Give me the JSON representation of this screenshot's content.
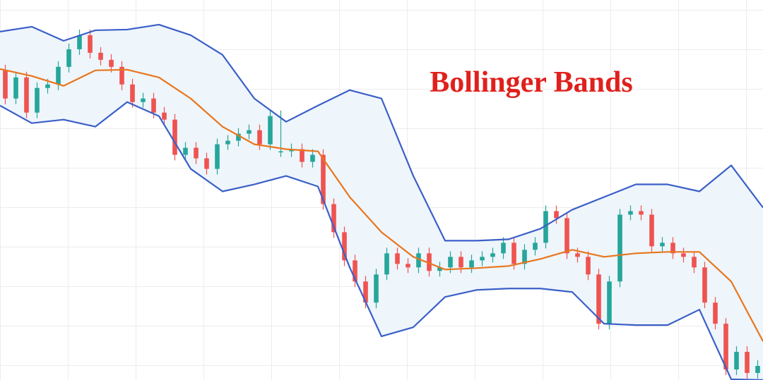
{
  "chart_data": {
    "type": "candlestick",
    "title": "Bollinger Bands",
    "xlim": [
      -0.5,
      71.5
    ],
    "ylim": [
      0,
      540
    ],
    "grid": true,
    "up_color": "#26a69a",
    "down_color": "#ef5350",
    "band_fill": "#eef5fb",
    "x": [
      0,
      1,
      2,
      3,
      4,
      5,
      6,
      7,
      8,
      9,
      10,
      11,
      12,
      13,
      14,
      15,
      16,
      17,
      18,
      19,
      20,
      21,
      22,
      23,
      24,
      25,
      26,
      27,
      28,
      29,
      30,
      31,
      32,
      33,
      34,
      35,
      36,
      37,
      38,
      39,
      40,
      41,
      42,
      43,
      44,
      45,
      46,
      47,
      48,
      49,
      50,
      51,
      52,
      53,
      54,
      55,
      56,
      57,
      58,
      59,
      60,
      61,
      62,
      63,
      64,
      65,
      66,
      67,
      68,
      69,
      70,
      71
    ],
    "open": [
      440,
      400,
      430,
      380,
      415,
      420,
      445,
      470,
      490,
      465,
      455,
      445,
      420,
      395,
      400,
      380,
      370,
      320,
      330,
      315,
      300,
      335,
      340,
      350,
      355,
      335,
      325,
      325,
      328,
      310,
      320,
      250,
      210,
      170,
      140,
      110,
      150,
      180,
      165,
      160,
      180,
      155,
      160,
      175,
      160,
      170,
      175,
      180,
      195,
      165,
      185,
      195,
      240,
      230,
      180,
      175,
      150,
      80,
      140,
      235,
      240,
      235,
      190,
      195,
      180,
      175,
      160,
      110,
      80,
      15,
      40,
      10
    ],
    "high": [
      448,
      438,
      438,
      423,
      428,
      453,
      478,
      498,
      498,
      473,
      463,
      453,
      428,
      408,
      408,
      388,
      378,
      338,
      338,
      323,
      343,
      348,
      358,
      363,
      363,
      383,
      383,
      336,
      336,
      328,
      328,
      258,
      218,
      178,
      148,
      158,
      188,
      188,
      173,
      188,
      188,
      168,
      183,
      183,
      178,
      183,
      188,
      203,
      203,
      193,
      203,
      248,
      248,
      238,
      188,
      183,
      158,
      148,
      243,
      248,
      248,
      243,
      203,
      203,
      188,
      183,
      168,
      118,
      88,
      48,
      48,
      28
    ],
    "low": [
      392,
      392,
      372,
      372,
      407,
      412,
      437,
      462,
      457,
      447,
      437,
      412,
      387,
      387,
      372,
      362,
      312,
      312,
      307,
      292,
      292,
      327,
      332,
      342,
      327,
      327,
      317,
      317,
      302,
      302,
      242,
      202,
      162,
      132,
      102,
      102,
      142,
      157,
      152,
      152,
      147,
      147,
      152,
      152,
      152,
      162,
      167,
      172,
      157,
      157,
      177,
      187,
      222,
      172,
      167,
      142,
      72,
      72,
      132,
      227,
      227,
      182,
      182,
      172,
      167,
      152,
      102,
      72,
      7,
      7,
      2,
      2
    ],
    "close": [
      400,
      430,
      380,
      415,
      420,
      445,
      470,
      490,
      465,
      455,
      445,
      420,
      395,
      400,
      380,
      370,
      320,
      330,
      315,
      300,
      335,
      340,
      350,
      355,
      335,
      375,
      325,
      328,
      310,
      320,
      250,
      210,
      170,
      140,
      110,
      150,
      180,
      165,
      160,
      180,
      155,
      160,
      175,
      160,
      170,
      175,
      180,
      195,
      165,
      185,
      195,
      240,
      230,
      180,
      175,
      150,
      80,
      140,
      235,
      240,
      235,
      190,
      195,
      180,
      175,
      160,
      110,
      80,
      15,
      40,
      10,
      20
    ],
    "series": [
      {
        "color": "#3b5fc8",
        "x": [
          -0.5,
          2.5,
          5.5,
          8.5,
          11.5,
          14.5,
          17.5,
          20.5,
          23.5,
          26.5,
          29.5,
          32.5,
          35.5,
          38.5,
          41.5,
          44.5,
          47.5,
          50.5,
          53.5,
          56.5,
          59.5,
          62.5,
          65.5,
          68.5,
          71.5
        ],
        "values": [
          495,
          502,
          482,
          497,
          498,
          505,
          490,
          462,
          400,
          367,
          390,
          412,
          400,
          290,
          198,
          198,
          200,
          215,
          242,
          260,
          278,
          278,
          268,
          305,
          245
        ]
      },
      {
        "color": "#e8761e",
        "x": [
          -0.5,
          2.5,
          5.5,
          8.5,
          11.5,
          14.5,
          17.5,
          20.5,
          23.5,
          26.5,
          29.5,
          32.5,
          35.5,
          38.5,
          41.5,
          44.5,
          47.5,
          50.5,
          53.5,
          56.5,
          59.5,
          62.5,
          65.5,
          68.5,
          71.5
        ],
        "values": [
          442,
          432,
          418,
          440,
          441,
          430,
          400,
          360,
          335,
          328,
          325,
          260,
          210,
          175,
          157,
          159,
          162,
          172,
          185,
          175,
          180,
          182,
          182,
          140,
          55
        ]
      },
      {
        "color": "#3b5fc8",
        "x": [
          -0.5,
          2.5,
          5.5,
          8.5,
          11.5,
          14.5,
          17.5,
          20.5,
          23.5,
          26.5,
          29.5,
          32.5,
          35.5,
          38.5,
          41.5,
          44.5,
          47.5,
          50.5,
          53.5,
          56.5,
          59.5,
          62.5,
          65.5,
          68.5,
          71.5
        ],
        "values": [
          390,
          365,
          370,
          360,
          395,
          375,
          300,
          268,
          278,
          290,
          275,
          160,
          62,
          75,
          118,
          128,
          130,
          130,
          125,
          80,
          78,
          78,
          100,
          1,
          0
        ]
      }
    ]
  }
}
